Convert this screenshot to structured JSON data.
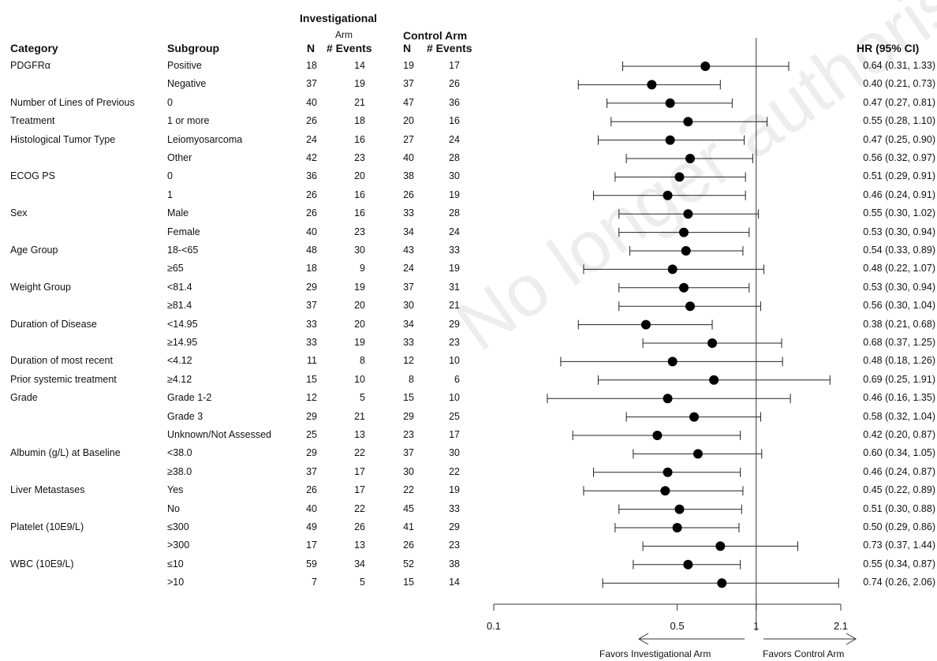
{
  "headers": {
    "category": "Category",
    "subgroup": "Subgroup",
    "investigational_title": "Investigational",
    "investigational_sub": "Arm",
    "control_title": "Control Arm",
    "n": "N",
    "events": "# Events",
    "hr": "HR (95% CI)"
  },
  "watermark": "No longer authorised",
  "favors": {
    "left": "Favors Investigational Arm",
    "right": "Favors Control Arm"
  },
  "chart_data": {
    "type": "forest",
    "xscale": "log",
    "xlim": [
      0.1,
      2.1
    ],
    "ticks": [
      "0.1",
      "0.5",
      "1",
      "2.1"
    ],
    "reference_line": 1,
    "rows": [
      {
        "category": "PDGFRα",
        "subgroup": "Positive",
        "inv_n": "18",
        "inv_events": "14",
        "ctl_n": "19",
        "ctl_events": "17",
        "hr": 0.64,
        "lo": 0.31,
        "hi": 1.33,
        "hr_text": "0.64 (0.31, 1.33)"
      },
      {
        "category": "",
        "subgroup": "Negative",
        "inv_n": "37",
        "inv_events": "19",
        "ctl_n": "37",
        "ctl_events": "26",
        "hr": 0.4,
        "lo": 0.21,
        "hi": 0.73,
        "hr_text": "0.40 (0.21, 0.73)"
      },
      {
        "category": "Number of Lines of Previous",
        "subgroup": "0",
        "inv_n": "40",
        "inv_events": "21",
        "ctl_n": "47",
        "ctl_events": "36",
        "hr": 0.47,
        "lo": 0.27,
        "hi": 0.81,
        "hr_text": "0.47 (0.27, 0.81)"
      },
      {
        "category": "Treatment",
        "subgroup": "1 or more",
        "inv_n": "26",
        "inv_events": "18",
        "ctl_n": "20",
        "ctl_events": "16",
        "hr": 0.55,
        "lo": 0.28,
        "hi": 1.1,
        "hr_text": "0.55 (0.28, 1.10)"
      },
      {
        "category": "Histological Tumor Type",
        "subgroup": "Leiomyosarcoma",
        "inv_n": "24",
        "inv_events": "16",
        "ctl_n": "27",
        "ctl_events": "24",
        "hr": 0.47,
        "lo": 0.25,
        "hi": 0.9,
        "hr_text": "0.47 (0.25, 0.90)"
      },
      {
        "category": "",
        "subgroup": "Other",
        "inv_n": "42",
        "inv_events": "23",
        "ctl_n": "40",
        "ctl_events": "28",
        "hr": 0.56,
        "lo": 0.32,
        "hi": 0.97,
        "hr_text": "0.56 (0.32, 0.97)"
      },
      {
        "category": "ECOG PS",
        "subgroup": "0",
        "inv_n": "36",
        "inv_events": "20",
        "ctl_n": "38",
        "ctl_events": "30",
        "hr": 0.51,
        "lo": 0.29,
        "hi": 0.91,
        "hr_text": "0.51 (0.29, 0.91)"
      },
      {
        "category": "",
        "subgroup": "1",
        "inv_n": "26",
        "inv_events": "16",
        "ctl_n": "26",
        "ctl_events": "19",
        "hr": 0.46,
        "lo": 0.24,
        "hi": 0.91,
        "hr_text": "0.46 (0.24, 0.91)"
      },
      {
        "category": "Sex",
        "subgroup": "Male",
        "inv_n": "26",
        "inv_events": "16",
        "ctl_n": "33",
        "ctl_events": "28",
        "hr": 0.55,
        "lo": 0.3,
        "hi": 1.02,
        "hr_text": "0.55 (0.30, 1.02)"
      },
      {
        "category": "",
        "subgroup": "Female",
        "inv_n": "40",
        "inv_events": "23",
        "ctl_n": "34",
        "ctl_events": "24",
        "hr": 0.53,
        "lo": 0.3,
        "hi": 0.94,
        "hr_text": "0.53 (0.30, 0.94)"
      },
      {
        "category": "Age Group",
        "subgroup": "18-<65",
        "inv_n": "48",
        "inv_events": "30",
        "ctl_n": "43",
        "ctl_events": "33",
        "hr": 0.54,
        "lo": 0.33,
        "hi": 0.89,
        "hr_text": "0.54 (0.33, 0.89)"
      },
      {
        "category": "",
        "subgroup": "≥65",
        "inv_n": "18",
        "inv_events": "9",
        "ctl_n": "24",
        "ctl_events": "19",
        "hr": 0.48,
        "lo": 0.22,
        "hi": 1.07,
        "hr_text": "0.48 (0.22, 1.07)"
      },
      {
        "category": "Weight Group",
        "subgroup": "<81.4",
        "inv_n": "29",
        "inv_events": "19",
        "ctl_n": "37",
        "ctl_events": "31",
        "hr": 0.53,
        "lo": 0.3,
        "hi": 0.94,
        "hr_text": "0.53 (0.30, 0.94)"
      },
      {
        "category": "",
        "subgroup": "≥81.4",
        "inv_n": "37",
        "inv_events": "20",
        "ctl_n": "30",
        "ctl_events": "21",
        "hr": 0.56,
        "lo": 0.3,
        "hi": 1.04,
        "hr_text": "0.56 (0.30, 1.04)"
      },
      {
        "category": "Duration of Disease",
        "subgroup": "<14.95",
        "inv_n": "33",
        "inv_events": "20",
        "ctl_n": "34",
        "ctl_events": "29",
        "hr": 0.38,
        "lo": 0.21,
        "hi": 0.68,
        "hr_text": "0.38 (0.21, 0.68)"
      },
      {
        "category": "",
        "subgroup": "≥14.95",
        "inv_n": "33",
        "inv_events": "19",
        "ctl_n": "33",
        "ctl_events": "23",
        "hr": 0.68,
        "lo": 0.37,
        "hi": 1.25,
        "hr_text": "0.68 (0.37, 1.25)"
      },
      {
        "category": "Duration of most recent",
        "subgroup": "<4.12",
        "inv_n": "11",
        "inv_events": "8",
        "ctl_n": "12",
        "ctl_events": "10",
        "hr": 0.48,
        "lo": 0.18,
        "hi": 1.26,
        "hr_text": "0.48 (0.18, 1.26)"
      },
      {
        "category": "Prior systemic treatment",
        "subgroup": "≥4.12",
        "inv_n": "15",
        "inv_events": "10",
        "ctl_n": "8",
        "ctl_events": "6",
        "hr": 0.69,
        "lo": 0.25,
        "hi": 1.91,
        "hr_text": "0.69 (0.25, 1.91)"
      },
      {
        "category": "Grade",
        "subgroup": "Grade 1-2",
        "inv_n": "12",
        "inv_events": "5",
        "ctl_n": "15",
        "ctl_events": "10",
        "hr": 0.46,
        "lo": 0.16,
        "hi": 1.35,
        "hr_text": "0.46 (0.16, 1.35)"
      },
      {
        "category": "",
        "subgroup": "Grade 3",
        "inv_n": "29",
        "inv_events": "21",
        "ctl_n": "29",
        "ctl_events": "25",
        "hr": 0.58,
        "lo": 0.32,
        "hi": 1.04,
        "hr_text": "0.58 (0.32, 1.04)"
      },
      {
        "category": "",
        "subgroup": "Unknown/Not Assessed",
        "inv_n": "25",
        "inv_events": "13",
        "ctl_n": "23",
        "ctl_events": "17",
        "hr": 0.42,
        "lo": 0.2,
        "hi": 0.87,
        "hr_text": "0.42 (0.20, 0.87)"
      },
      {
        "category": "Albumin (g/L) at Baseline",
        "subgroup": "<38.0",
        "inv_n": "29",
        "inv_events": "22",
        "ctl_n": "37",
        "ctl_events": "30",
        "hr": 0.6,
        "lo": 0.34,
        "hi": 1.05,
        "hr_text": "0.60 (0.34, 1.05)"
      },
      {
        "category": "",
        "subgroup": "≥38.0",
        "inv_n": "37",
        "inv_events": "17",
        "ctl_n": "30",
        "ctl_events": "22",
        "hr": 0.46,
        "lo": 0.24,
        "hi": 0.87,
        "hr_text": "0.46 (0.24, 0.87)"
      },
      {
        "category": "Liver Metastases",
        "subgroup": "Yes",
        "inv_n": "26",
        "inv_events": "17",
        "ctl_n": "22",
        "ctl_events": "19",
        "hr": 0.45,
        "lo": 0.22,
        "hi": 0.89,
        "hr_text": "0.45 (0.22, 0.89)"
      },
      {
        "category": "",
        "subgroup": "No",
        "inv_n": "40",
        "inv_events": "22",
        "ctl_n": "45",
        "ctl_events": "33",
        "hr": 0.51,
        "lo": 0.3,
        "hi": 0.88,
        "hr_text": "0.51 (0.30, 0.88)"
      },
      {
        "category": "Platelet (10E9/L)",
        "subgroup": "≤300",
        "inv_n": "49",
        "inv_events": "26",
        "ctl_n": "41",
        "ctl_events": "29",
        "hr": 0.5,
        "lo": 0.29,
        "hi": 0.86,
        "hr_text": "0.50 (0.29, 0.86)"
      },
      {
        "category": "",
        "subgroup": ">300",
        "inv_n": "17",
        "inv_events": "13",
        "ctl_n": "26",
        "ctl_events": "23",
        "hr": 0.73,
        "lo": 0.37,
        "hi": 1.44,
        "hr_text": "0.73 (0.37, 1.44)"
      },
      {
        "category": "WBC (10E9/L)",
        "subgroup": "≤10",
        "inv_n": "59",
        "inv_events": "34",
        "ctl_n": "52",
        "ctl_events": "38",
        "hr": 0.55,
        "lo": 0.34,
        "hi": 0.87,
        "hr_text": "0.55 (0.34, 0.87)"
      },
      {
        "category": "",
        "subgroup": ">10",
        "inv_n": "7",
        "inv_events": "5",
        "ctl_n": "15",
        "ctl_events": "14",
        "hr": 0.74,
        "lo": 0.26,
        "hi": 2.06,
        "hr_text": "0.74 (0.26, 2.06)"
      }
    ]
  }
}
